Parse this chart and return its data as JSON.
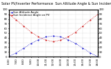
{
  "title": "Solar PV/Inverter Performance  Sun Altitude Angle & Sun Incidence Angle on PV Panels",
  "x_labels": [
    "6:00",
    "7:00",
    "8:00",
    "9:00",
    "10:00",
    "11:00",
    "12:00",
    "13:00",
    "14:00",
    "15:00",
    "16:00",
    "17:00",
    "18:00"
  ],
  "x_values": [
    6,
    7,
    8,
    9,
    10,
    11,
    12,
    13,
    14,
    15,
    16,
    17,
    18
  ],
  "altitude_values": [
    0,
    8,
    18,
    28,
    36,
    42,
    44,
    42,
    36,
    28,
    18,
    8,
    0
  ],
  "incidence_values": [
    90,
    78,
    65,
    52,
    42,
    35,
    32,
    35,
    42,
    52,
    65,
    78,
    90
  ],
  "altitude_color": "#0000cc",
  "incidence_color": "#cc0000",
  "background_color": "#ffffff",
  "grid_color": "#aaaaaa",
  "ylim": [
    0,
    100
  ],
  "yticks": [
    0,
    10,
    20,
    30,
    40,
    50,
    60,
    70,
    80,
    90,
    100
  ],
  "title_fontsize": 3.5,
  "tick_fontsize": 2.8,
  "legend_labels": [
    "Sun Altitude Angle",
    "Sun Incidence Angle on PV"
  ],
  "legend_fontsize": 2.8
}
